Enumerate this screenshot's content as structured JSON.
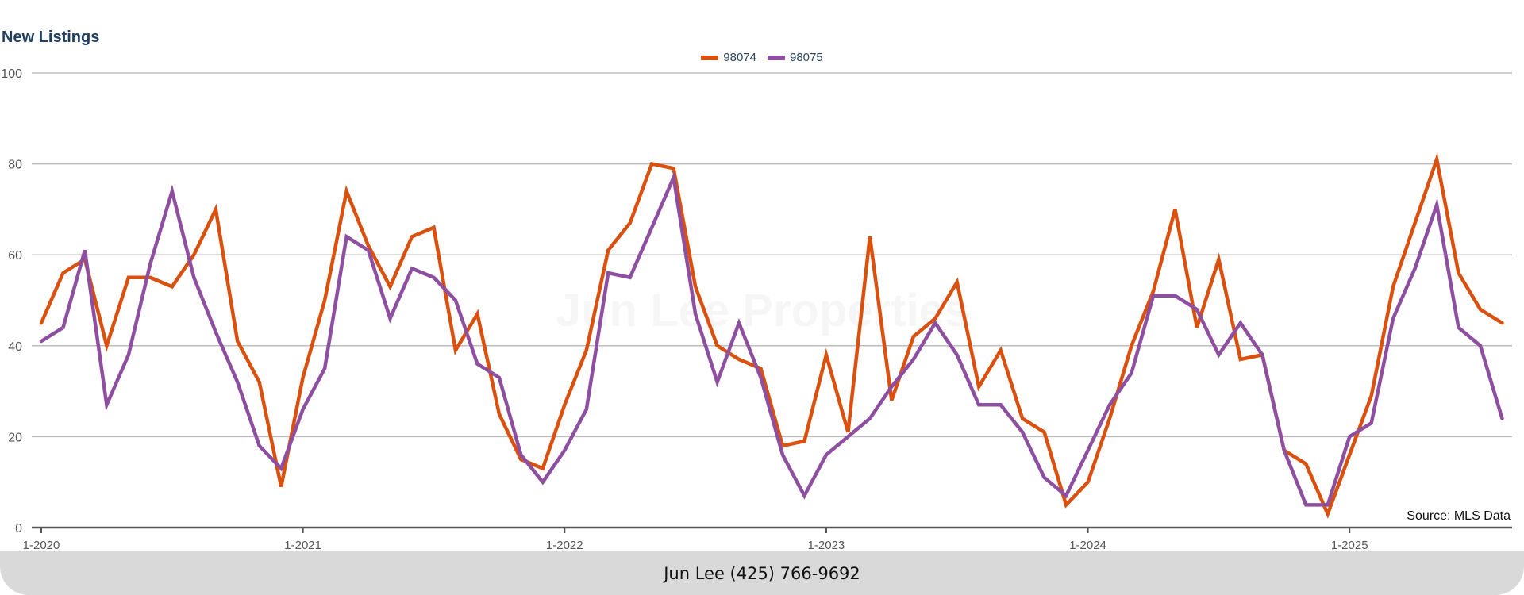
{
  "chart_data": {
    "type": "line",
    "title": "New Listings",
    "xlabel": "",
    "ylabel": "",
    "ylim": [
      0,
      100
    ],
    "yticks": [
      0,
      20,
      40,
      60,
      80,
      100
    ],
    "xticks": [
      {
        "label": "1-2020",
        "index": 0
      },
      {
        "label": "1-2021",
        "index": 12
      },
      {
        "label": "1-2022",
        "index": 24
      },
      {
        "label": "1-2023",
        "index": 36
      },
      {
        "label": "1-2024",
        "index": 48
      },
      {
        "label": "1-2025",
        "index": 60
      }
    ],
    "x_start": "1-2020",
    "x_frequency": "monthly",
    "grid": true,
    "legend_position": "top-center",
    "series": [
      {
        "name": "98074",
        "color": "#d9500f",
        "values": [
          45,
          56,
          59,
          40,
          55,
          55,
          53,
          60,
          70,
          41,
          32,
          9,
          33,
          50,
          74,
          62,
          53,
          64,
          66,
          39,
          47,
          25,
          15,
          13,
          27,
          39,
          61,
          67,
          80,
          79,
          53,
          40,
          37,
          35,
          18,
          19,
          38,
          21,
          64,
          28,
          42,
          46,
          54,
          31,
          39,
          24,
          21,
          5,
          10,
          24,
          40,
          52,
          70,
          44,
          59,
          37,
          38,
          17,
          14,
          3,
          16,
          29,
          53,
          67,
          81,
          56,
          48,
          45
        ]
      },
      {
        "name": "98075",
        "color": "#8e4fa0",
        "values": [
          41,
          44,
          61,
          27,
          38,
          58,
          74,
          55,
          43,
          32,
          18,
          13,
          26,
          35,
          64,
          61,
          46,
          57,
          55,
          50,
          36,
          33,
          16,
          10,
          17,
          26,
          56,
          55,
          66,
          77,
          47,
          32,
          45,
          33,
          16,
          7,
          16,
          20,
          24,
          31,
          37,
          45,
          38,
          27,
          27,
          21,
          11,
          7,
          17,
          27,
          34,
          51,
          51,
          48,
          38,
          45,
          38,
          17,
          5,
          5,
          20,
          23,
          46,
          57,
          71,
          44,
          40,
          24
        ]
      }
    ],
    "annotations": [
      "Source: MLS Data"
    ]
  },
  "watermark": "Jun Lee Properties",
  "source_note": "Source: MLS Data",
  "footer": "Jun Lee (425) 766-9692"
}
